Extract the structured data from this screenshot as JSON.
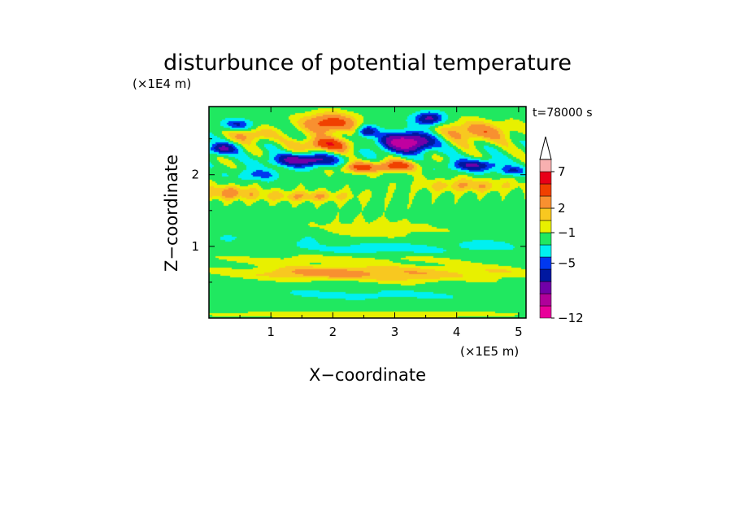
{
  "chart_data": {
    "type": "heatmap",
    "title": "disturbunce of potential temperature",
    "time_label": "t=78000 s",
    "xlabel": "X−coordinate",
    "ylabel": "Z−coordinate",
    "x_unit": "(×1E5 m)",
    "y_unit": "(×1E4 m)",
    "xlim": [
      0,
      5.12
    ],
    "ylim": [
      0,
      2.95
    ],
    "x_ticks": [
      "1",
      "2",
      "3",
      "4",
      "5"
    ],
    "x_tick_values": [
      1,
      2,
      3,
      4,
      5
    ],
    "y_ticks": [
      "1",
      "2"
    ],
    "y_tick_values": [
      1,
      2
    ],
    "colorbar": {
      "labels": [
        "−12",
        "−5",
        "−1",
        "2",
        "7"
      ],
      "label_values": [
        -12,
        -5,
        -1,
        2,
        7
      ],
      "colors": [
        "#e8009a",
        "#b0009a",
        "#7000a8",
        "#0018a0",
        "#0038f0",
        "#00f0f0",
        "#20e860",
        "#e8f000",
        "#f8c820",
        "#f89030",
        "#f04000",
        "#e80018",
        "#f8b0b0"
      ],
      "extend_top": true
    },
    "palette": [
      {
        "min": -99,
        "max": -9,
        "color": "#c000a0"
      },
      {
        "min": -9,
        "max": -6,
        "color": "#7000a8"
      },
      {
        "min": -6,
        "max": -4,
        "color": "#0018a0"
      },
      {
        "min": -4,
        "max": -2.5,
        "color": "#0038f0"
      },
      {
        "min": -2.5,
        "max": -0.8,
        "color": "#00f0f0"
      },
      {
        "min": -0.8,
        "max": 0.6,
        "color": "#20e860"
      },
      {
        "min": 0.6,
        "max": 1.6,
        "color": "#e8f000"
      },
      {
        "min": 1.6,
        "max": 2.6,
        "color": "#f8c820"
      },
      {
        "min": 2.6,
        "max": 4.0,
        "color": "#f89030"
      },
      {
        "min": 4.0,
        "max": 6.0,
        "color": "#f04000"
      },
      {
        "min": 6.0,
        "max": 99,
        "color": "#e80018"
      }
    ],
    "features": [
      {
        "x": 3.2,
        "z": 2.45,
        "amp": -12,
        "sx": 0.4,
        "sz": 0.13
      },
      {
        "x": 3.55,
        "z": 2.78,
        "amp": -7,
        "sx": 0.22,
        "sz": 0.09
      },
      {
        "x": 2.55,
        "z": 2.6,
        "amp": -6,
        "sx": 0.15,
        "sz": 0.08
      },
      {
        "x": 1.55,
        "z": 2.2,
        "amp": -8,
        "sx": 0.5,
        "sz": 0.085
      },
      {
        "x": 0.2,
        "z": 2.36,
        "amp": -6,
        "sx": 0.25,
        "sz": 0.08
      },
      {
        "x": 4.3,
        "z": 2.13,
        "amp": -6,
        "sx": 0.4,
        "sz": 0.08
      },
      {
        "x": 0.45,
        "z": 2.7,
        "amp": -4,
        "sx": 0.25,
        "sz": 0.07
      },
      {
        "x": 0.8,
        "z": 2.0,
        "amp": -3,
        "sx": 0.35,
        "sz": 0.08
      },
      {
        "x": 4.9,
        "z": 2.05,
        "amp": -4,
        "sx": 0.2,
        "sz": 0.06
      },
      {
        "x": 1.95,
        "z": 2.72,
        "amp": 5,
        "sx": 0.45,
        "sz": 0.14
      },
      {
        "x": 1.9,
        "z": 2.42,
        "amp": 5,
        "sx": 0.45,
        "sz": 0.1
      },
      {
        "x": 3.0,
        "z": 2.12,
        "amp": 5,
        "sx": 0.35,
        "sz": 0.08
      },
      {
        "x": 2.4,
        "z": 2.1,
        "amp": 4,
        "sx": 0.3,
        "sz": 0.08
      },
      {
        "x": 4.3,
        "z": 2.6,
        "amp": 3.5,
        "sx": 0.6,
        "sz": 0.15
      },
      {
        "x": 0.7,
        "z": 2.55,
        "amp": 3,
        "sx": 0.35,
        "sz": 0.1
      },
      {
        "x": 0.3,
        "z": 1.75,
        "amp": 3,
        "sx": 0.5,
        "sz": 0.1
      },
      {
        "x": 4.2,
        "z": 1.85,
        "amp": 2.5,
        "sx": 0.8,
        "sz": 0.1
      },
      {
        "x": 1.6,
        "z": 1.7,
        "amp": 2.5,
        "sx": 0.8,
        "sz": 0.08
      },
      {
        "x": 2.6,
        "z": 1.2,
        "amp": 0.8,
        "sx": 2.0,
        "sz": 0.3
      },
      {
        "x": 2.8,
        "z": 0.98,
        "amp": -2,
        "sx": 1.2,
        "sz": 0.1
      },
      {
        "x": 1.6,
        "z": 1.1,
        "amp": -1.5,
        "sx": 0.3,
        "sz": 0.1
      },
      {
        "x": 4.5,
        "z": 1.02,
        "amp": -1.5,
        "sx": 0.5,
        "sz": 0.1
      },
      {
        "x": 0.3,
        "z": 1.1,
        "amp": -1.2,
        "sx": 0.3,
        "sz": 0.1
      },
      {
        "x": 2.5,
        "z": 0.64,
        "amp": 2.2,
        "sx": 2.2,
        "sz": 0.1
      },
      {
        "x": 1.8,
        "z": 0.62,
        "amp": 1.6,
        "sx": 0.8,
        "sz": 0.08
      },
      {
        "x": 3.3,
        "z": 0.55,
        "amp": 1.2,
        "sx": 0.6,
        "sz": 0.08
      },
      {
        "x": 2.0,
        "z": 0.82,
        "amp": 1.0,
        "sx": 2.0,
        "sz": 0.06
      },
      {
        "x": 2.5,
        "z": 0.32,
        "amp": -1.0,
        "sx": 3.0,
        "sz": 0.1
      },
      {
        "x": 2.5,
        "z": 0.05,
        "amp": 1.2,
        "sx": 3.0,
        "sz": 0.06
      },
      {
        "x": 4.6,
        "z": 0.62,
        "amp": 0.8,
        "sx": 0.5,
        "sz": 0.1
      }
    ]
  }
}
